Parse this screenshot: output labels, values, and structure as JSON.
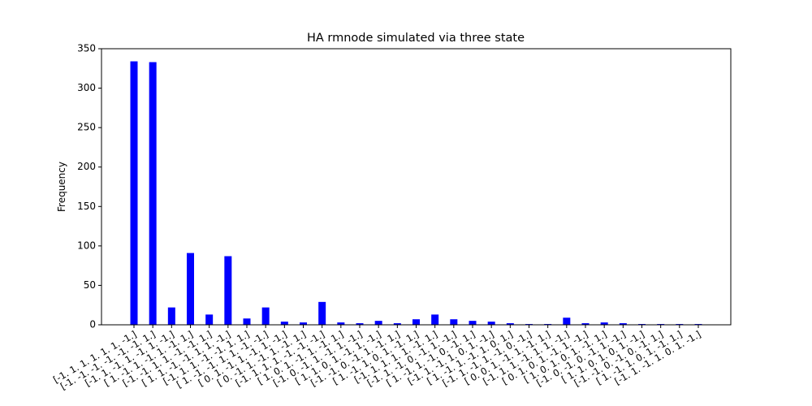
{
  "chart_data": {
    "type": "bar",
    "title": "HA rmnode simulated via three state",
    "ylabel": "Frequency",
    "categories": [
      "[-1. 1. 1. 1. 1. 1. -1.]",
      "[-1. -1. -1. -1. -1. -1. 1.]",
      "[-1. 1. -1. 1. -1. 1. -1.]",
      "[ 1. -1. 1. -1. 1. -1. 1.]",
      "[-1. -1. 1. 1. -1. -1. 1.]",
      "[ 1. 1. -1. -1. 1. 1. -1.]",
      "[-1. 1. 1. -1. -1. 1. 1.]",
      "[ 1. -1. -1. 1. 1. -1. -1.]",
      "[ 0. 1. -1. 1. -1. 1. -1.]",
      "[ 0. -1. 1. -1. 1. -1. 1.]",
      "[-1. 1. 1. 1. -1. -1. -1.]",
      "[ 1. 0. 1. -1. 1. -1. 1.]",
      "[-1. 0. -1. 1. -1. 1. -1.]",
      "[ 1. 1. 0. 1. -1. 1. -1.]",
      "[-1. -1. 0. -1. 1. -1. 1.]",
      "[ 1. -1. 1. 0. 1. -1. 1.]",
      "[-1. 1. 1. 1. 1. -1. 1.]",
      "[-1. 1. -1. 0. -1. 1. -1.]",
      "[ 1. -1. 1. -1. 0. -1. 1.]",
      "[-1. 1. -1. 1. 0. 1. -1.]",
      "[ 1. -1. 1. -1. 1. 0. 1.]",
      "[-1. 1. -1. 1. -1. 0. -1.]",
      "[ 0. 0. 1. -1. 1. -1. 1.]",
      "[-1. 1. 1. -1. 1. 1. -1.]",
      "[ 0. 1. 0. 1. -1. 1. -1.]",
      "[ 1. 0. 1. 0. 1. -1. 1.]",
      "[-1. 0. -1. 0. -1. 1. -1.]",
      "[ 1. 1. 0. 1. 0. 1. -1.]",
      "[-1. -1. 0. -1. 0. -1. 1.]",
      "[ 1. -1. 1. 0. 1. -1. 1.]",
      "[-1. 1. -1. 1. 0. 1. -1.]"
    ],
    "values": [
      334,
      333,
      22,
      91,
      13,
      87,
      8,
      22,
      4,
      3,
      29,
      3,
      2,
      5,
      2,
      7,
      13,
      7,
      5,
      4,
      2,
      1,
      1,
      9,
      2,
      3,
      2,
      1,
      1,
      1,
      1
    ],
    "color": "#0000ff",
    "ylim": [
      0,
      350
    ],
    "yticks": [
      0,
      50,
      100,
      150,
      200,
      250,
      300,
      350
    ],
    "grid": false
  }
}
